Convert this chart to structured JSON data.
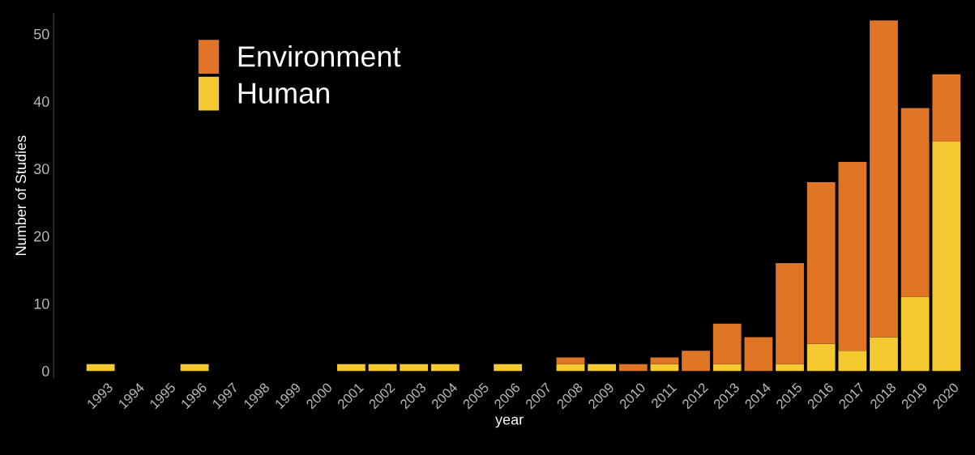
{
  "chart_data": {
    "type": "bar",
    "xlabel": "year",
    "ylabel": "Number of Studies",
    "categories": [
      "1993",
      "1994",
      "1995",
      "1996",
      "1997",
      "1998",
      "1999",
      "2000",
      "2001",
      "2002",
      "2003",
      "2004",
      "2005",
      "2006",
      "2007",
      "2008",
      "2009",
      "2010",
      "2011",
      "2012",
      "2013",
      "2014",
      "2015",
      "2016",
      "2017",
      "2018",
      "2019",
      "2020"
    ],
    "stacked": true,
    "series": [
      {
        "name": "Human",
        "color": "#f5c932",
        "values": [
          1,
          0,
          0,
          1,
          0,
          0,
          0,
          0,
          1,
          1,
          1,
          1,
          0,
          1,
          0,
          1,
          1,
          0,
          1,
          0,
          1,
          0,
          1,
          4,
          3,
          5,
          11,
          34
        ]
      },
      {
        "name": "Environment",
        "color": "#e07526",
        "values": [
          0,
          0,
          0,
          0,
          0,
          0,
          0,
          0,
          0,
          0,
          0,
          0,
          0,
          0,
          0,
          1,
          0,
          1,
          1,
          3,
          6,
          5,
          15,
          24,
          28,
          47,
          28,
          10
        ]
      }
    ],
    "ylim": [
      -1,
      53
    ],
    "yticks": [
      0,
      10,
      20,
      30,
      40,
      50
    ],
    "grid": false,
    "legend": "top left"
  }
}
